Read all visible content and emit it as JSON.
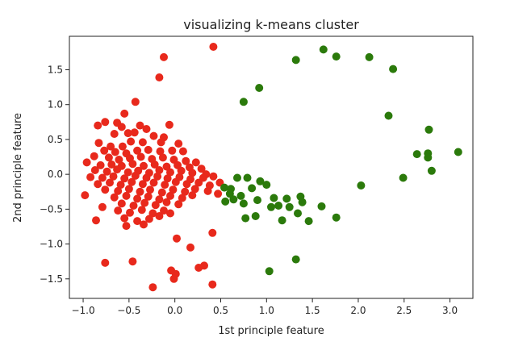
{
  "chart_data": {
    "type": "scatter",
    "title": "visualizing k-means cluster",
    "xlabel": "1st principle feature",
    "ylabel": "2nd principle feature",
    "xlim": [
      -1.15,
      3.25
    ],
    "ylim": [
      -1.78,
      1.98
    ],
    "xticks": [
      -1.0,
      -0.5,
      0.0,
      0.5,
      1.0,
      1.5,
      2.0,
      2.5,
      3.0
    ],
    "xtick_labels": [
      "−1.0",
      "−0.5",
      "0.0",
      "0.5",
      "1.0",
      "1.5",
      "2.0",
      "2.5",
      "3.0"
    ],
    "yticks": [
      1.5,
      1.0,
      0.5,
      0.0,
      -0.5,
      -1.0,
      -1.5
    ],
    "ytick_labels": [
      "1.5",
      "1.0",
      "0.5",
      "0.0",
      "−0.5",
      "−1.0",
      "−1.5"
    ],
    "grid": false,
    "series": [
      {
        "color": "#e8291c",
        "points": [
          [
            0.42,
            1.83
          ],
          [
            -0.12,
            1.68
          ],
          [
            -0.17,
            1.39
          ],
          [
            -0.43,
            1.04
          ],
          [
            -0.76,
            0.75
          ],
          [
            -0.84,
            0.7
          ],
          [
            -0.55,
            0.87
          ],
          [
            -0.63,
            0.74
          ],
          [
            -0.38,
            0.7
          ],
          [
            -0.58,
            0.68
          ],
          [
            -0.31,
            0.65
          ],
          [
            -0.06,
            0.71
          ],
          [
            -0.66,
            0.58
          ],
          [
            -0.51,
            0.59
          ],
          [
            -0.44,
            0.6
          ],
          [
            -0.23,
            0.55
          ],
          [
            -0.12,
            0.53
          ],
          [
            -0.83,
            0.45
          ],
          [
            -0.48,
            0.47
          ],
          [
            -0.35,
            0.46
          ],
          [
            -0.15,
            0.46
          ],
          [
            0.04,
            0.44
          ],
          [
            -0.7,
            0.4
          ],
          [
            -0.57,
            0.4
          ],
          [
            -0.77,
            0.34
          ],
          [
            -0.65,
            0.32
          ],
          [
            -0.53,
            0.3
          ],
          [
            -0.41,
            0.34
          ],
          [
            -0.29,
            0.35
          ],
          [
            -0.16,
            0.33
          ],
          [
            -0.03,
            0.34
          ],
          [
            0.09,
            0.33
          ],
          [
            -0.88,
            0.26
          ],
          [
            -0.72,
            0.24
          ],
          [
            -0.61,
            0.21
          ],
          [
            -0.49,
            0.23
          ],
          [
            -0.37,
            0.25
          ],
          [
            -0.25,
            0.22
          ],
          [
            -0.13,
            0.24
          ],
          [
            -0.01,
            0.21
          ],
          [
            0.12,
            0.19
          ],
          [
            0.23,
            0.17
          ],
          [
            -0.96,
            0.17
          ],
          [
            -0.81,
            0.13
          ],
          [
            -0.69,
            0.14
          ],
          [
            -0.58,
            0.12
          ],
          [
            -0.46,
            0.15
          ],
          [
            -0.34,
            0.12
          ],
          [
            -0.22,
            0.14
          ],
          [
            -0.09,
            0.11
          ],
          [
            0.03,
            0.13
          ],
          [
            0.16,
            0.1
          ],
          [
            0.29,
            0.08
          ],
          [
            -0.87,
            0.06
          ],
          [
            -0.74,
            0.04
          ],
          [
            -0.63,
            0.07
          ],
          [
            -0.51,
            0.03
          ],
          [
            -0.4,
            0.05
          ],
          [
            -0.28,
            0.02
          ],
          [
            -0.17,
            0.06
          ],
          [
            -0.05,
            0.03
          ],
          [
            0.07,
            0.05
          ],
          [
            0.19,
            0.02
          ],
          [
            0.34,
            0.0
          ],
          [
            -0.92,
            -0.04
          ],
          [
            -0.79,
            -0.05
          ],
          [
            -0.67,
            -0.03
          ],
          [
            -0.55,
            -0.06
          ],
          [
            -0.43,
            -0.02
          ],
          [
            -0.31,
            -0.05
          ],
          [
            -0.19,
            -0.03
          ],
          [
            -0.08,
            -0.06
          ],
          [
            0.05,
            -0.04
          ],
          [
            0.17,
            -0.07
          ],
          [
            0.31,
            -0.05
          ],
          [
            0.42,
            -0.03
          ],
          [
            -0.84,
            -0.14
          ],
          [
            -0.71,
            -0.12
          ],
          [
            -0.59,
            -0.15
          ],
          [
            -0.47,
            -0.11
          ],
          [
            -0.35,
            -0.14
          ],
          [
            -0.23,
            -0.12
          ],
          [
            -0.11,
            -0.15
          ],
          [
            0.01,
            -0.11
          ],
          [
            0.13,
            -0.14
          ],
          [
            0.26,
            -0.12
          ],
          [
            0.38,
            -0.16
          ],
          [
            0.49,
            -0.12
          ],
          [
            -0.76,
            -0.22
          ],
          [
            -0.62,
            -0.24
          ],
          [
            -0.5,
            -0.21
          ],
          [
            -0.38,
            -0.25
          ],
          [
            -0.27,
            -0.22
          ],
          [
            -0.14,
            -0.26
          ],
          [
            -0.02,
            -0.22
          ],
          [
            0.11,
            -0.25
          ],
          [
            0.22,
            -0.21
          ],
          [
            0.36,
            -0.24
          ],
          [
            0.47,
            -0.28
          ],
          [
            -0.98,
            -0.3
          ],
          [
            -0.66,
            -0.33
          ],
          [
            -0.53,
            -0.31
          ],
          [
            -0.41,
            -0.35
          ],
          [
            -0.29,
            -0.32
          ],
          [
            -0.17,
            -0.36
          ],
          [
            -0.05,
            -0.31
          ],
          [
            0.08,
            -0.34
          ],
          [
            0.19,
            -0.3
          ],
          [
            -0.58,
            -0.42
          ],
          [
            -0.45,
            -0.45
          ],
          [
            -0.33,
            -0.41
          ],
          [
            -0.21,
            -0.44
          ],
          [
            -0.09,
            -0.4
          ],
          [
            0.04,
            -0.43
          ],
          [
            -0.79,
            -0.47
          ],
          [
            -0.62,
            -0.52
          ],
          [
            -0.49,
            -0.55
          ],
          [
            -0.36,
            -0.51
          ],
          [
            -0.24,
            -0.56
          ],
          [
            -0.12,
            -0.52
          ],
          [
            -0.86,
            -0.66
          ],
          [
            -0.55,
            -0.63
          ],
          [
            -0.41,
            -0.67
          ],
          [
            -0.28,
            -0.64
          ],
          [
            -0.17,
            -0.6
          ],
          [
            -0.05,
            -0.56
          ],
          [
            -0.53,
            -0.74
          ],
          [
            -0.34,
            -0.72
          ],
          [
            0.41,
            -0.84
          ],
          [
            0.02,
            -0.92
          ],
          [
            0.17,
            -1.05
          ],
          [
            -0.46,
            -1.25
          ],
          [
            -0.76,
            -1.27
          ],
          [
            0.26,
            -1.34
          ],
          [
            0.32,
            -1.31
          ],
          [
            -0.04,
            -1.38
          ],
          [
            0.01,
            -1.43
          ],
          [
            -0.01,
            -1.5
          ],
          [
            -0.24,
            -1.62
          ],
          [
            0.41,
            -1.58
          ]
        ]
      },
      {
        "color": "#2b7a0b",
        "points": [
          [
            1.62,
            1.79
          ],
          [
            1.76,
            1.69
          ],
          [
            1.32,
            1.64
          ],
          [
            2.12,
            1.68
          ],
          [
            2.38,
            1.51
          ],
          [
            0.92,
            1.24
          ],
          [
            0.75,
            1.04
          ],
          [
            2.33,
            0.84
          ],
          [
            2.77,
            0.64
          ],
          [
            2.64,
            0.29
          ],
          [
            2.76,
            0.3
          ],
          [
            3.09,
            0.32
          ],
          [
            2.76,
            0.24
          ],
          [
            2.8,
            0.05
          ],
          [
            2.49,
            -0.05
          ],
          [
            2.03,
            -0.16
          ],
          [
            0.54,
            -0.19
          ],
          [
            0.61,
            -0.21
          ],
          [
            0.68,
            -0.05
          ],
          [
            0.79,
            -0.05
          ],
          [
            0.6,
            -0.28
          ],
          [
            0.72,
            -0.31
          ],
          [
            0.84,
            -0.2
          ],
          [
            0.93,
            -0.1
          ],
          [
            1.0,
            -0.15
          ],
          [
            1.08,
            -0.34
          ],
          [
            1.22,
            -0.35
          ],
          [
            1.37,
            -0.32
          ],
          [
            0.55,
            -0.39
          ],
          [
            0.64,
            -0.36
          ],
          [
            0.75,
            -0.42
          ],
          [
            0.9,
            -0.37
          ],
          [
            1.05,
            -0.47
          ],
          [
            1.13,
            -0.45
          ],
          [
            1.25,
            -0.47
          ],
          [
            1.39,
            -0.4
          ],
          [
            1.6,
            -0.46
          ],
          [
            0.77,
            -0.63
          ],
          [
            0.88,
            -0.6
          ],
          [
            1.17,
            -0.66
          ],
          [
            1.34,
            -0.56
          ],
          [
            1.46,
            -0.67
          ],
          [
            1.76,
            -0.62
          ],
          [
            1.03,
            -1.39
          ],
          [
            1.32,
            -1.22
          ]
        ]
      }
    ]
  }
}
